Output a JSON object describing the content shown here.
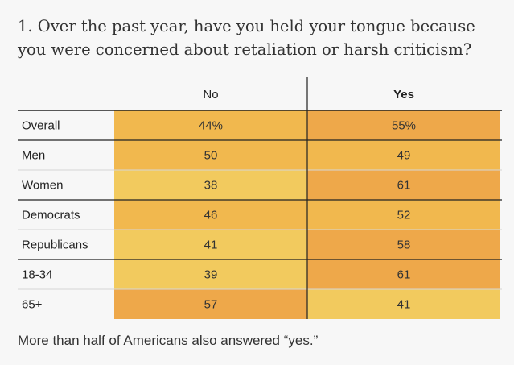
{
  "question": "1. Over the past year, have you held your tongue because you were concerned about retaliation or harsh criticism?",
  "note": "More than half of Americans also answered “yes.”",
  "colors": {
    "low": "#f2ca5e",
    "mid": "#f1b84e",
    "high": "#eea84a",
    "rule_dark": "#222222",
    "rule_light": "#d6d6d6"
  },
  "chart_data": {
    "type": "table",
    "columns": [
      "No",
      "Yes"
    ],
    "bold_column": "Yes",
    "rows": [
      {
        "label": "Overall",
        "values": [
          "44%",
          "55%"
        ],
        "numeric": [
          44,
          55
        ]
      },
      {
        "label": "Men",
        "values": [
          "50",
          "49"
        ],
        "numeric": [
          50,
          49
        ]
      },
      {
        "label": "Women",
        "values": [
          "38",
          "61"
        ],
        "numeric": [
          38,
          61
        ]
      },
      {
        "label": "Democrats",
        "values": [
          "46",
          "52"
        ],
        "numeric": [
          46,
          52
        ]
      },
      {
        "label": "Republicans",
        "values": [
          "41",
          "58"
        ],
        "numeric": [
          41,
          58
        ]
      },
      {
        "label": "18-34",
        "values": [
          "39",
          "61"
        ],
        "numeric": [
          39,
          61
        ]
      },
      {
        "label": "65+",
        "values": [
          "57",
          "41"
        ],
        "numeric": [
          57,
          41
        ]
      }
    ],
    "group_separators_after": [
      0,
      2,
      4
    ]
  }
}
